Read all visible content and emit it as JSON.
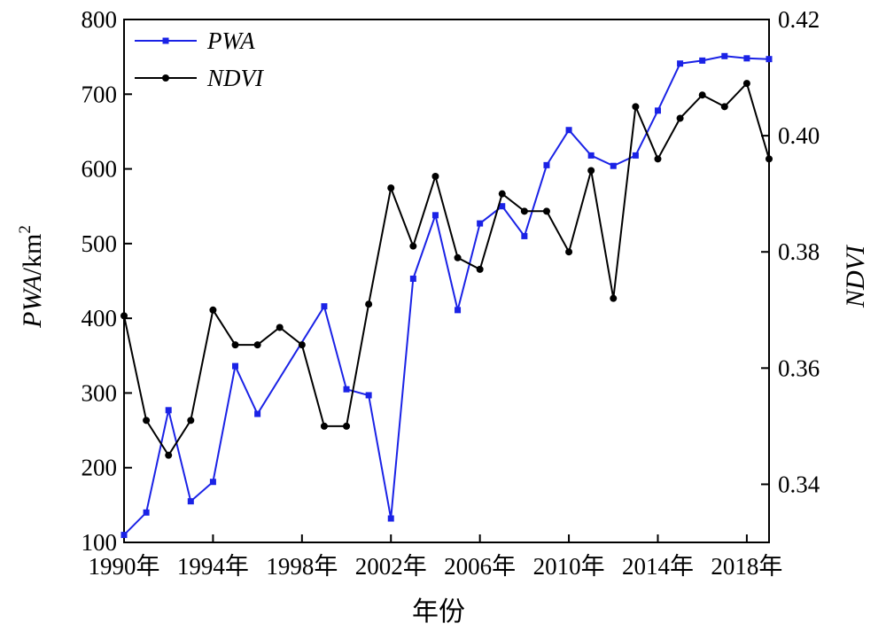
{
  "chart_data": {
    "type": "line",
    "xlabel": "年份",
    "ylabel_left": {
      "main": "PWA",
      "unit": "/km",
      "sup": "2"
    },
    "ylabel_right": "NDVI",
    "x_range": [
      1990,
      2019
    ],
    "y_left_range": [
      100,
      800
    ],
    "y_right_range": [
      0.33,
      0.42
    ],
    "x_ticks": [
      {
        "value": 1990,
        "label": "1990年"
      },
      {
        "value": 1994,
        "label": "1994年"
      },
      {
        "value": 1998,
        "label": "1998年"
      },
      {
        "value": 2002,
        "label": "2002年"
      },
      {
        "value": 2006,
        "label": "2006年"
      },
      {
        "value": 2010,
        "label": "2010年"
      },
      {
        "value": 2014,
        "label": "2014年"
      },
      {
        "value": 2018,
        "label": "2018年"
      }
    ],
    "y_left_ticks": [
      "100",
      "200",
      "300",
      "400",
      "500",
      "600",
      "700",
      "800"
    ],
    "y_right_ticks": [
      "0.34",
      "0.36",
      "0.38",
      "0.40",
      "0.42"
    ],
    "legend": {
      "position": "top-left"
    },
    "x": [
      1990,
      1991,
      1992,
      1993,
      1994,
      1995,
      1996,
      1997,
      1998,
      1999,
      2000,
      2001,
      2002,
      2003,
      2004,
      2005,
      2006,
      2007,
      2008,
      2009,
      2010,
      2011,
      2012,
      2013,
      2014,
      2015,
      2016,
      2017,
      2018,
      2019
    ],
    "series": [
      {
        "name": "PWA",
        "axis": "left",
        "color": "#1a22e6",
        "marker": "square",
        "missing": [
          1997,
          1998
        ],
        "values": [
          110,
          140,
          277,
          155,
          181,
          336,
          272,
          null,
          null,
          416,
          305,
          297,
          132,
          453,
          538,
          411,
          527,
          550,
          510,
          605,
          652,
          618,
          604,
          618,
          678,
          741,
          745,
          751,
          748,
          747
        ]
      },
      {
        "name": "NDVI",
        "axis": "right",
        "color": "#000000",
        "marker": "circle",
        "values": [
          0.369,
          0.351,
          0.345,
          0.351,
          0.37,
          0.364,
          0.364,
          0.367,
          0.364,
          0.35,
          0.35,
          0.371,
          0.391,
          0.381,
          0.393,
          0.379,
          0.377,
          0.39,
          0.387,
          0.387,
          0.38,
          0.394,
          0.372,
          0.405,
          0.396,
          0.403,
          0.407,
          0.405,
          0.409,
          0.396
        ]
      }
    ]
  }
}
